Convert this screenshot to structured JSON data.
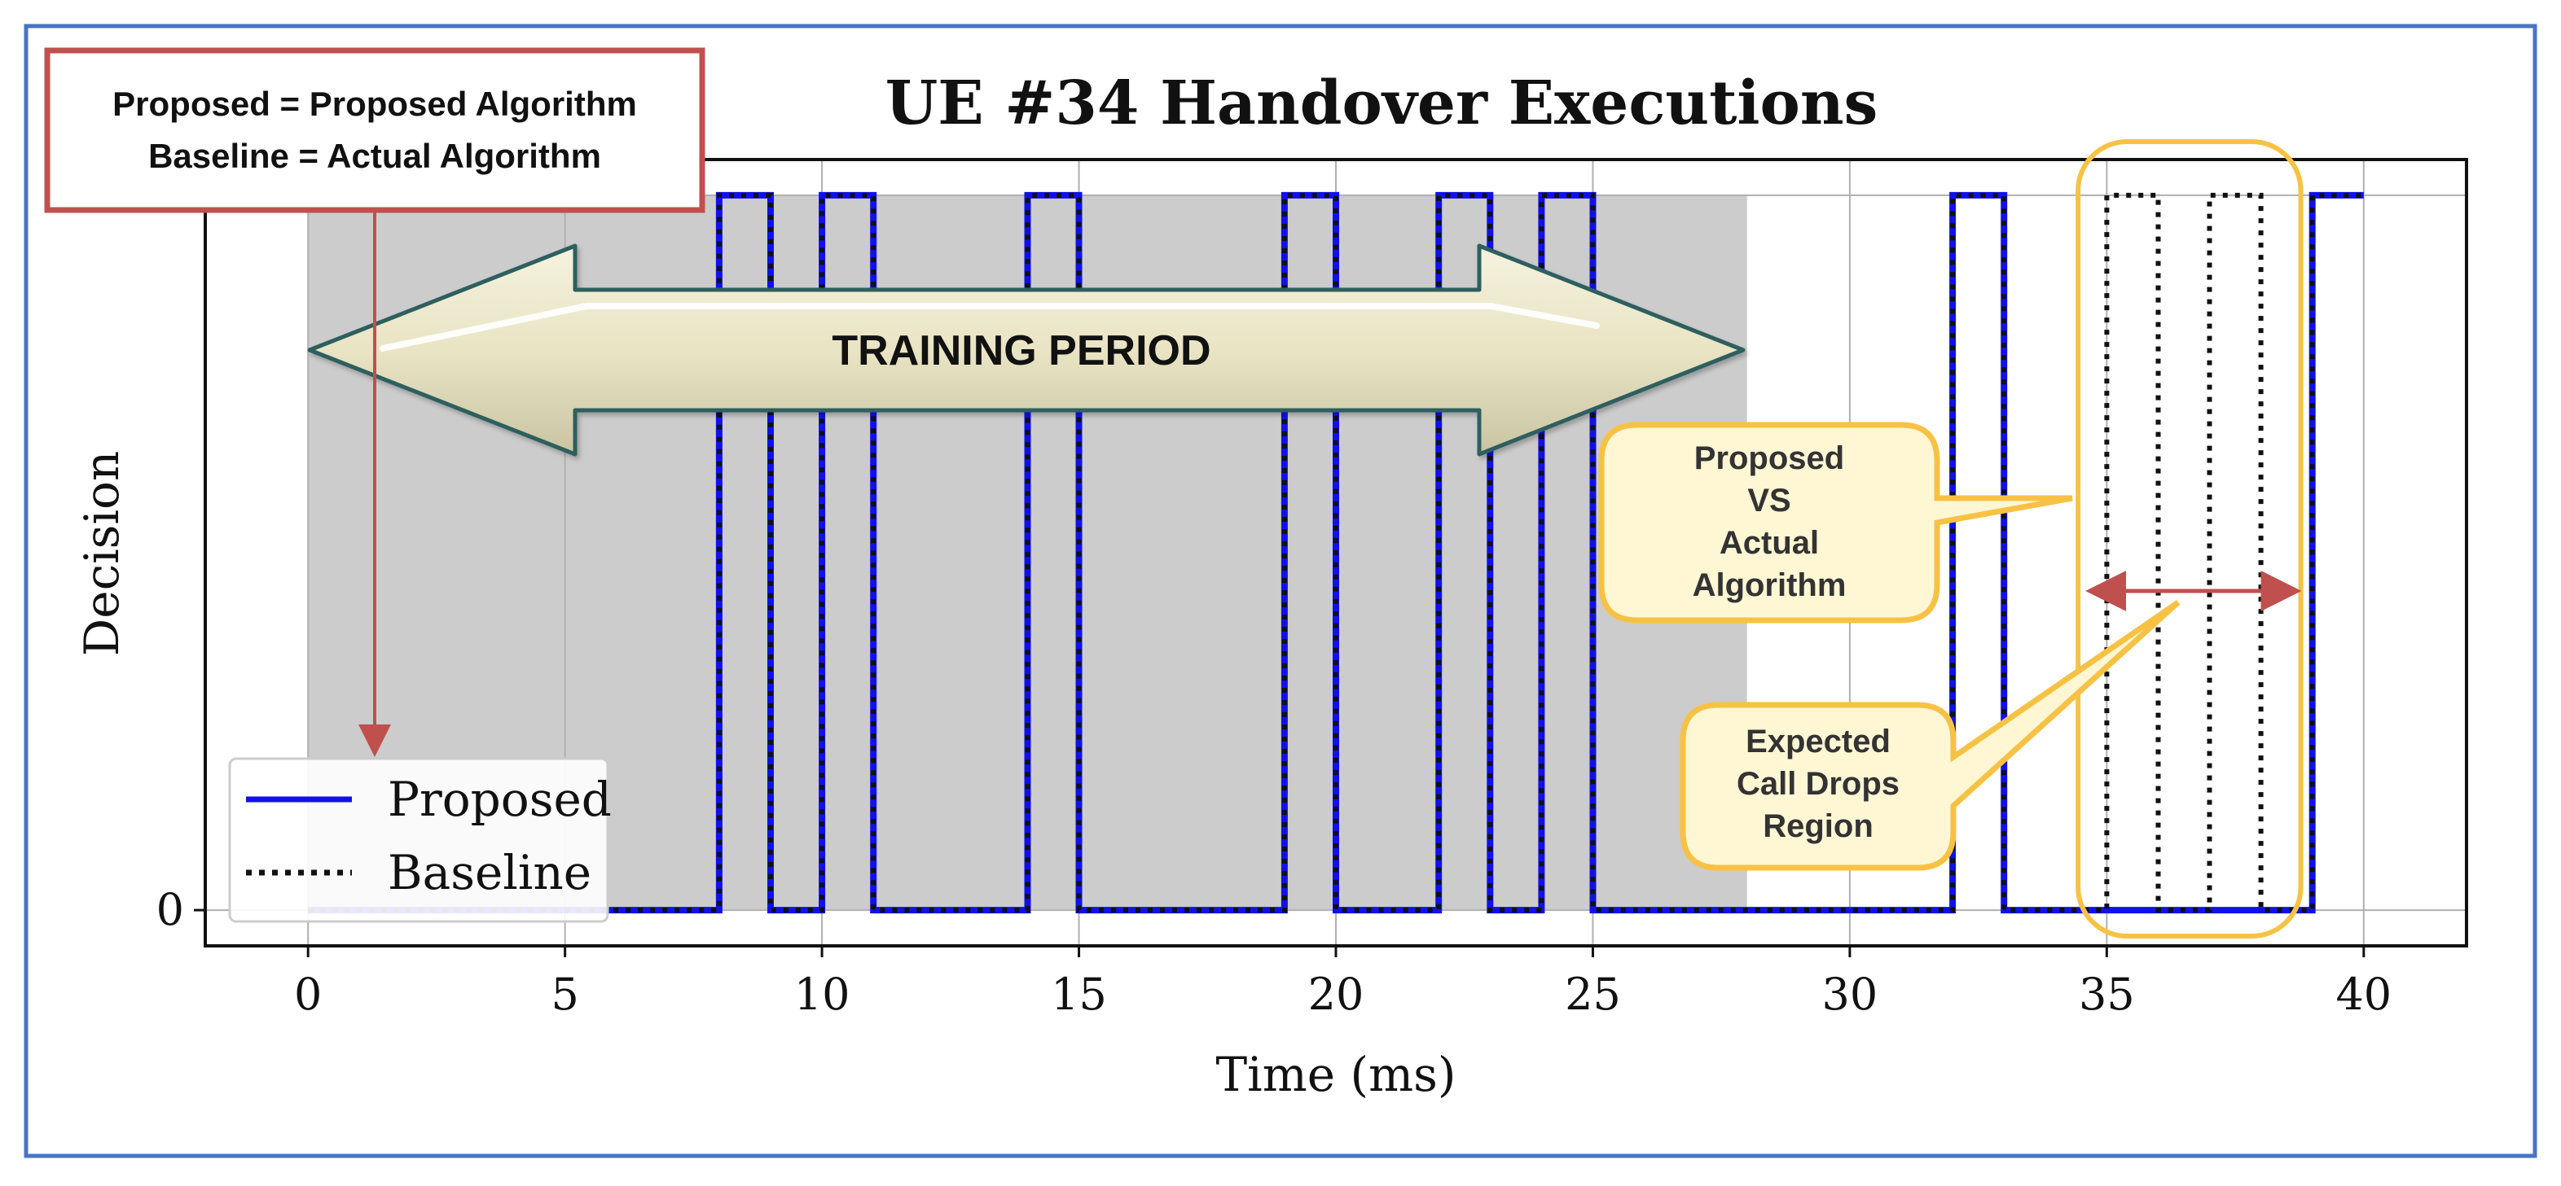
{
  "chart_data": {
    "type": "line",
    "title": "UE #34 Handover Executions",
    "xlabel": "Time (ms)",
    "ylabel": "Decision",
    "xlim": [
      -2,
      42
    ],
    "ylim": [
      -0.05,
      1.05
    ],
    "x_ticks": [
      0,
      5,
      10,
      15,
      20,
      25,
      30,
      35,
      40
    ],
    "y_ticks": [
      0
    ],
    "grid": true,
    "legend_position": "lower-left",
    "series": [
      {
        "name": "Proposed",
        "color": "#1010ee",
        "style": "solid",
        "x": [
          0,
          8,
          8,
          9,
          9,
          10,
          10,
          11,
          11,
          14,
          14,
          15,
          15,
          19,
          19,
          20,
          20,
          22,
          22,
          23,
          23,
          24,
          24,
          25,
          25,
          32,
          32,
          33,
          33,
          39,
          39,
          40
        ],
        "y": [
          0,
          0,
          1,
          1,
          0,
          0,
          1,
          1,
          0,
          0,
          1,
          1,
          0,
          0,
          1,
          1,
          0,
          0,
          1,
          1,
          0,
          0,
          1,
          1,
          0,
          0,
          1,
          1,
          0,
          0,
          1,
          1
        ]
      },
      {
        "name": "Baseline",
        "color": "#111111",
        "style": "dotted",
        "x": [
          0,
          8,
          8,
          9,
          9,
          10,
          10,
          11,
          11,
          14,
          14,
          15,
          15,
          19,
          19,
          20,
          20,
          22,
          22,
          23,
          23,
          24,
          24,
          25,
          25,
          32,
          32,
          33,
          33,
          35,
          35,
          36,
          36,
          37,
          37,
          38,
          38,
          39,
          39,
          40
        ],
        "y": [
          0,
          0,
          1,
          1,
          0,
          0,
          1,
          1,
          0,
          0,
          1,
          1,
          0,
          0,
          1,
          1,
          0,
          0,
          1,
          1,
          0,
          0,
          1,
          1,
          0,
          0,
          1,
          1,
          0,
          0,
          1,
          1,
          0,
          0,
          1,
          1,
          0,
          0,
          1,
          1
        ]
      }
    ],
    "shaded_region": {
      "x_start": 0,
      "x_end": 28,
      "color": "#cccccc"
    },
    "highlight_region": {
      "x_start": 34.6,
      "x_end": 38.3,
      "color": "#f7c244"
    }
  },
  "annotations": {
    "definition_line1": "Proposed = Proposed Algorithm",
    "definition_line2": "Baseline = Actual Algorithm",
    "training_label": "TRAINING PERIOD",
    "callout_compare": [
      "Proposed",
      "VS",
      "Actual",
      "Algorithm"
    ],
    "callout_drops": [
      "Expected",
      "Call Drops",
      "Region"
    ]
  },
  "colors": {
    "frame_border": "#4a74c4",
    "definition_border": "#c0504d",
    "arrow_fill": "#ebe7cc",
    "arrow_stroke": "#2e5e5e",
    "callout_fill": "#fff6d4",
    "callout_border": "#f7c244",
    "range_arrow": "#c0504d"
  }
}
